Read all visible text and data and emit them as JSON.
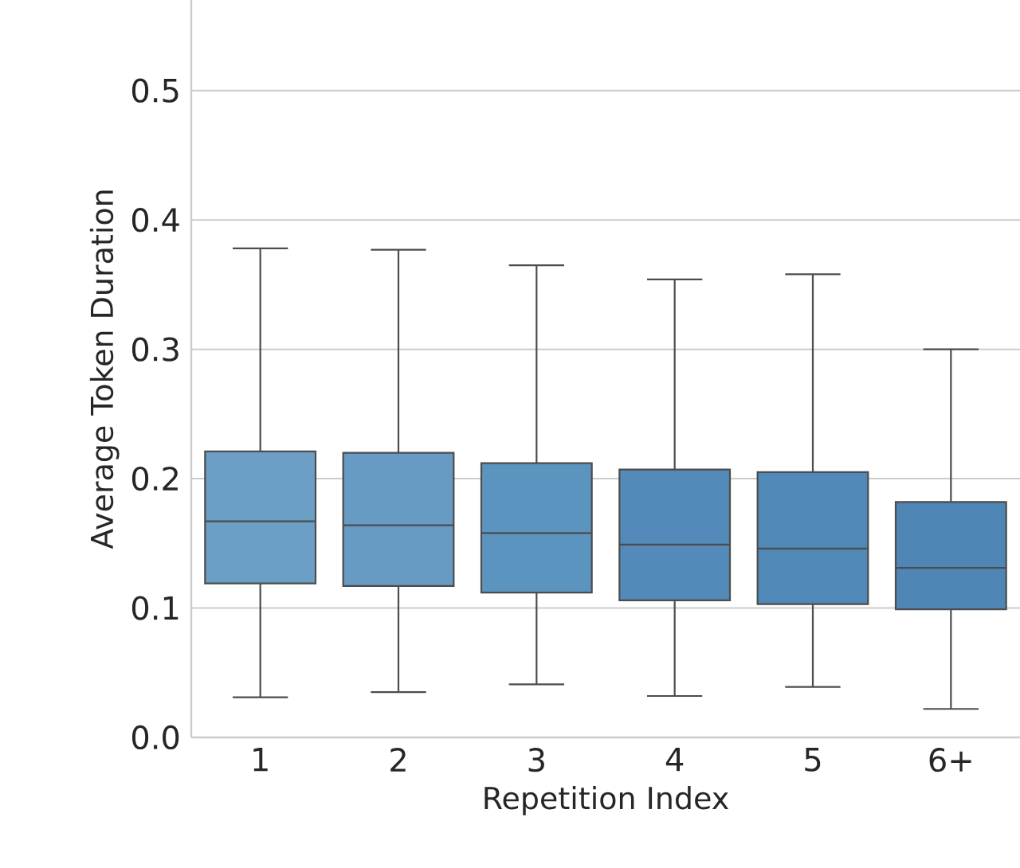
{
  "chart_data": {
    "type": "box",
    "xlabel": "Repetition Index",
    "ylabel": "Average Token Duration",
    "categories": [
      "1",
      "2",
      "3",
      "4",
      "5",
      "6+"
    ],
    "boxes": [
      {
        "low": 0.031,
        "q1": 0.119,
        "median": 0.167,
        "q3": 0.221,
        "high": 0.378
      },
      {
        "low": 0.035,
        "q1": 0.117,
        "median": 0.164,
        "q3": 0.22,
        "high": 0.377
      },
      {
        "low": 0.041,
        "q1": 0.112,
        "median": 0.158,
        "q3": 0.212,
        "high": 0.365
      },
      {
        "low": 0.032,
        "q1": 0.106,
        "median": 0.149,
        "q3": 0.207,
        "high": 0.354
      },
      {
        "low": 0.039,
        "q1": 0.103,
        "median": 0.146,
        "q3": 0.205,
        "high": 0.358
      },
      {
        "low": 0.022,
        "q1": 0.099,
        "median": 0.131,
        "q3": 0.182,
        "high": 0.3
      }
    ],
    "colors": [
      "#6b9fc6",
      "#679bc4",
      "#5c94c0",
      "#538ab9",
      "#5088b7",
      "#4f86b5"
    ],
    "ylim": [
      0,
      0.57
    ],
    "yticks": [
      {
        "value": 0,
        "label": "0.0"
      },
      0.1,
      0.2,
      0.3,
      0.4,
      0.5
    ],
    "grid": "y"
  }
}
